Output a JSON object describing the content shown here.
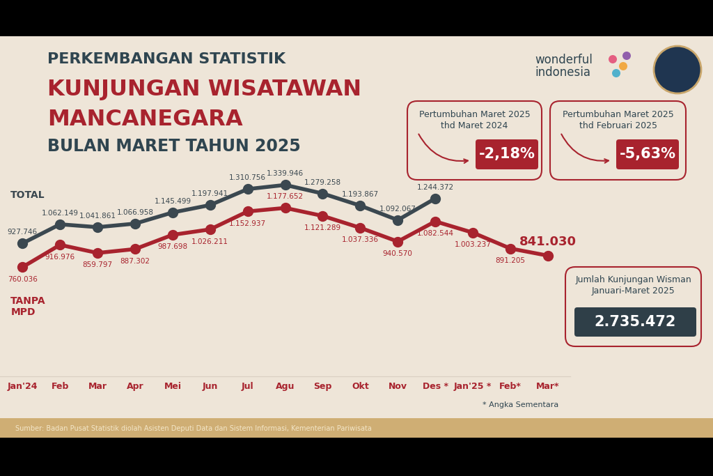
{
  "chart_data": {
    "type": "line",
    "title": "PERKEMBANGAN STATISTIK\nKUNJUNGAN WISATAWAN\nMANCANEGARA\nBULAN MARET TAHUN 2025",
    "categories": [
      "Jan'24",
      "Feb",
      "Mar",
      "Apr",
      "Mei",
      "Jun",
      "Jul",
      "Agu",
      "Sep",
      "Okt",
      "Nov",
      "Des *",
      "Jan'25 *",
      "Feb*",
      "Mar*"
    ],
    "series": [
      {
        "name": "TOTAL",
        "color": "#3b4850",
        "values": [
          927746,
          1062149,
          1041861,
          1066958,
          1145499,
          1197941,
          1310756,
          1339946,
          1279258,
          1193867,
          1092067,
          1244372,
          null,
          null,
          null
        ],
        "value_labels": [
          "927.746",
          "1.062.149",
          "1.041.861",
          "1.066.958",
          "1.145.499",
          "1.197.941",
          "1.310.756",
          "1.339.946",
          "1.279.258",
          "1.193.867",
          "1.092.067",
          "1.244.372",
          null,
          null,
          null
        ]
      },
      {
        "name": "TANPA\nMPD",
        "color": "#a8232e",
        "values": [
          760036,
          916976,
          859797,
          887302,
          987698,
          1026211,
          1152937,
          1177652,
          1121289,
          1037336,
          940570,
          1082544,
          1003237,
          891205,
          841030
        ],
        "value_labels": [
          "760.036",
          "916.976",
          "859.797",
          "887.302",
          "987.698",
          "1.026.211",
          "1.152.937",
          "1.177.652",
          "1.121.289",
          "1.037.336",
          "940.570",
          "1.082.544",
          "1.003.237",
          "891.205",
          "841.030"
        ]
      }
    ],
    "marker": "o",
    "data_labels": true,
    "tick_labels": "x",
    "annotations": [
      {
        "text": "Pertumbuhan Maret 2025\nthd Maret 2024",
        "value": "-2,18%"
      },
      {
        "text": "Pertumbuhan Maret 2025\nthd Februari 2025",
        "value": "-5,63%"
      },
      {
        "text": "Jumlah Kunjungan Wisman\nJanuari-Maret 2025",
        "value": "2.735.472"
      }
    ],
    "logo": "wonderful\nindonesia",
    "footnote": "* Angka Sementara",
    "source": "Sumber: Badan Pusat Statistik diolah Asisten Deputi Data dan Sistem Informasi, Kementerian Pariwisata"
  }
}
